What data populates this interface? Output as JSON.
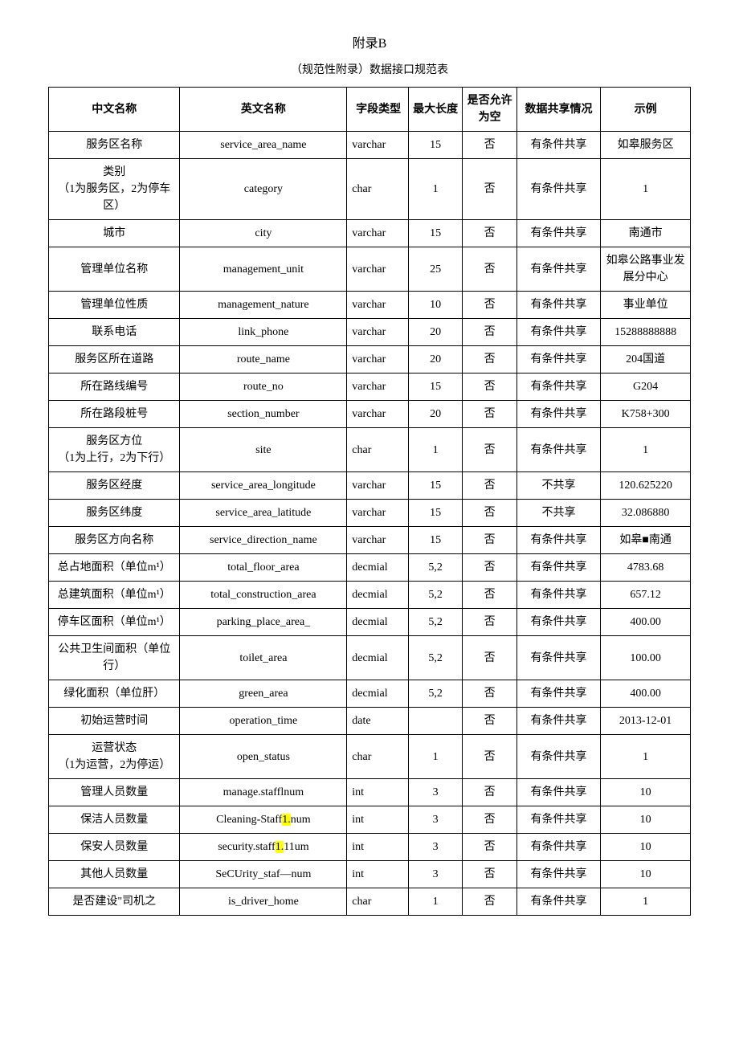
{
  "title": "附录B",
  "subtitle": "（规范性附录）数据接口规范表",
  "columns": [
    "中文名称",
    "英文名称",
    "字段类型",
    "最大长度",
    "是否允许为空",
    "数据共享情况",
    "示例"
  ],
  "rows": [
    {
      "cn": "服务区名称",
      "en": "service_area_name",
      "type": "varchar",
      "maxlen": "15",
      "null": "否",
      "share": "有条件共享",
      "ex": "如皋服务区"
    },
    {
      "cn": "类别\n（1为服务区，2为停车区）",
      "en": "category",
      "type": "char",
      "maxlen": "1",
      "null": "否",
      "share": "有条件共享",
      "ex": "1"
    },
    {
      "cn": "城市",
      "en": "city",
      "type": "varchar",
      "maxlen": "15",
      "null": "否",
      "share": "有条件共享",
      "ex": "南通市"
    },
    {
      "cn": "管理单位名称",
      "en": "management_unit",
      "type": "varchar",
      "maxlen": "25",
      "null": "否",
      "share": "有条件共享",
      "ex": "如皋公路事业发展分中心"
    },
    {
      "cn": "管理单位性质",
      "en": "management_nature",
      "type": "varchar",
      "maxlen": "10",
      "null": "否",
      "share": "有条件共享",
      "ex": "事业单位"
    },
    {
      "cn": "联系电话",
      "en": "link_phone",
      "type": "varchar",
      "maxlen": "20",
      "null": "否",
      "share": "有条件共享",
      "ex": "15288888888"
    },
    {
      "cn": "服务区所在道路",
      "en": "route_name",
      "type": "varchar",
      "maxlen": "20",
      "null": "否",
      "share": "有条件共享",
      "ex": "204国道"
    },
    {
      "cn": "所在路线编号",
      "en": "route_no",
      "type": "varchar",
      "maxlen": "15",
      "null": "否",
      "share": "有条件共享",
      "ex": "G204"
    },
    {
      "cn": "所在路段桩号",
      "en": "section_number",
      "type": "varchar",
      "maxlen": "20",
      "null": "否",
      "share": "有条件共享",
      "ex": "K758+300"
    },
    {
      "cn": "服务区方位\n（1为上行，2为下行）",
      "en": "site",
      "type": "char",
      "maxlen": "1",
      "null": "否",
      "share": "有条件共享",
      "ex": "1"
    },
    {
      "cn": "服务区经度",
      "en": "service_area_longitude",
      "type": "varchar",
      "maxlen": "15",
      "null": "否",
      "share": "不共享",
      "ex": "120.625220"
    },
    {
      "cn": "服务区纬度",
      "en": "service_area_latitude",
      "type": "varchar",
      "maxlen": "15",
      "null": "否",
      "share": "不共享",
      "ex": "32.086880"
    },
    {
      "cn": "服务区方向名称",
      "en": "service_direction_name",
      "type": "varchar",
      "maxlen": "15",
      "null": "否",
      "share": "有条件共享",
      "ex": "如皋■南通"
    },
    {
      "cn": "总占地面积（单位m¹）",
      "en": "total_floor_area",
      "type": "decmial",
      "maxlen": "5,2",
      "null": "否",
      "share": "有条件共享",
      "ex": "4783.68"
    },
    {
      "cn": "总建筑面积（单位m¹）",
      "en": "total_construction_area",
      "type": "decmial",
      "maxlen": "5,2",
      "null": "否",
      "share": "有条件共享",
      "ex": "657.12"
    },
    {
      "cn": "停车区面积（单位m¹）",
      "en": "parking_place_area_",
      "type": "decmial",
      "maxlen": "5,2",
      "null": "否",
      "share": "有条件共享",
      "ex": "400.00"
    },
    {
      "cn": "公共卫生间面积（单位行）",
      "en": "toilet_area",
      "type": "decmial",
      "maxlen": "5,2",
      "null": "否",
      "share": "有条件共享",
      "ex": "100.00"
    },
    {
      "cn": "绿化面积（单位肝）",
      "en": "green_area",
      "type": "decmial",
      "maxlen": "5,2",
      "null": "否",
      "share": "有条件共享",
      "ex": "400.00"
    },
    {
      "cn": "初始运营时间",
      "en": "operation_time",
      "type": "date",
      "maxlen": "",
      "null": "否",
      "share": "有条件共享",
      "ex": "2013-12-01"
    },
    {
      "cn": "运营状态\n（1为运营，2为停运）",
      "en": "open_status",
      "type": "char",
      "maxlen": "1",
      "null": "否",
      "share": "有条件共享",
      "ex": "1"
    },
    {
      "cn": "管理人员数量",
      "en": "manage.stafflnum",
      "type": "int",
      "maxlen": "3",
      "null": "否",
      "share": "有条件共享",
      "ex": "10"
    },
    {
      "cn": "保洁人员数量",
      "en_parts": [
        {
          "t": "Cleaning-Staff"
        },
        {
          "t": "1.",
          "hl": true
        },
        {
          "t": "num"
        }
      ],
      "type": "int",
      "maxlen": "3",
      "null": "否",
      "share": "有条件共享",
      "ex": "10"
    },
    {
      "cn": "保安人员数量",
      "en_parts": [
        {
          "t": "security.staff"
        },
        {
          "t": "1.",
          "hl": true
        },
        {
          "t": "11um"
        }
      ],
      "type": "int",
      "maxlen": "3",
      "null": "否",
      "share": "有条件共享",
      "ex": "10"
    },
    {
      "cn": "其他人员数量",
      "en": "SeCUrity_staf—num",
      "type": "int",
      "maxlen": "3",
      "null": "否",
      "share": "有条件共享",
      "ex": "10"
    },
    {
      "cn": "是否建设\"司机之",
      "en": "is_driver_home",
      "type": "char",
      "maxlen": "1",
      "null": "否",
      "share": "有条件共享",
      "ex": "1"
    }
  ]
}
